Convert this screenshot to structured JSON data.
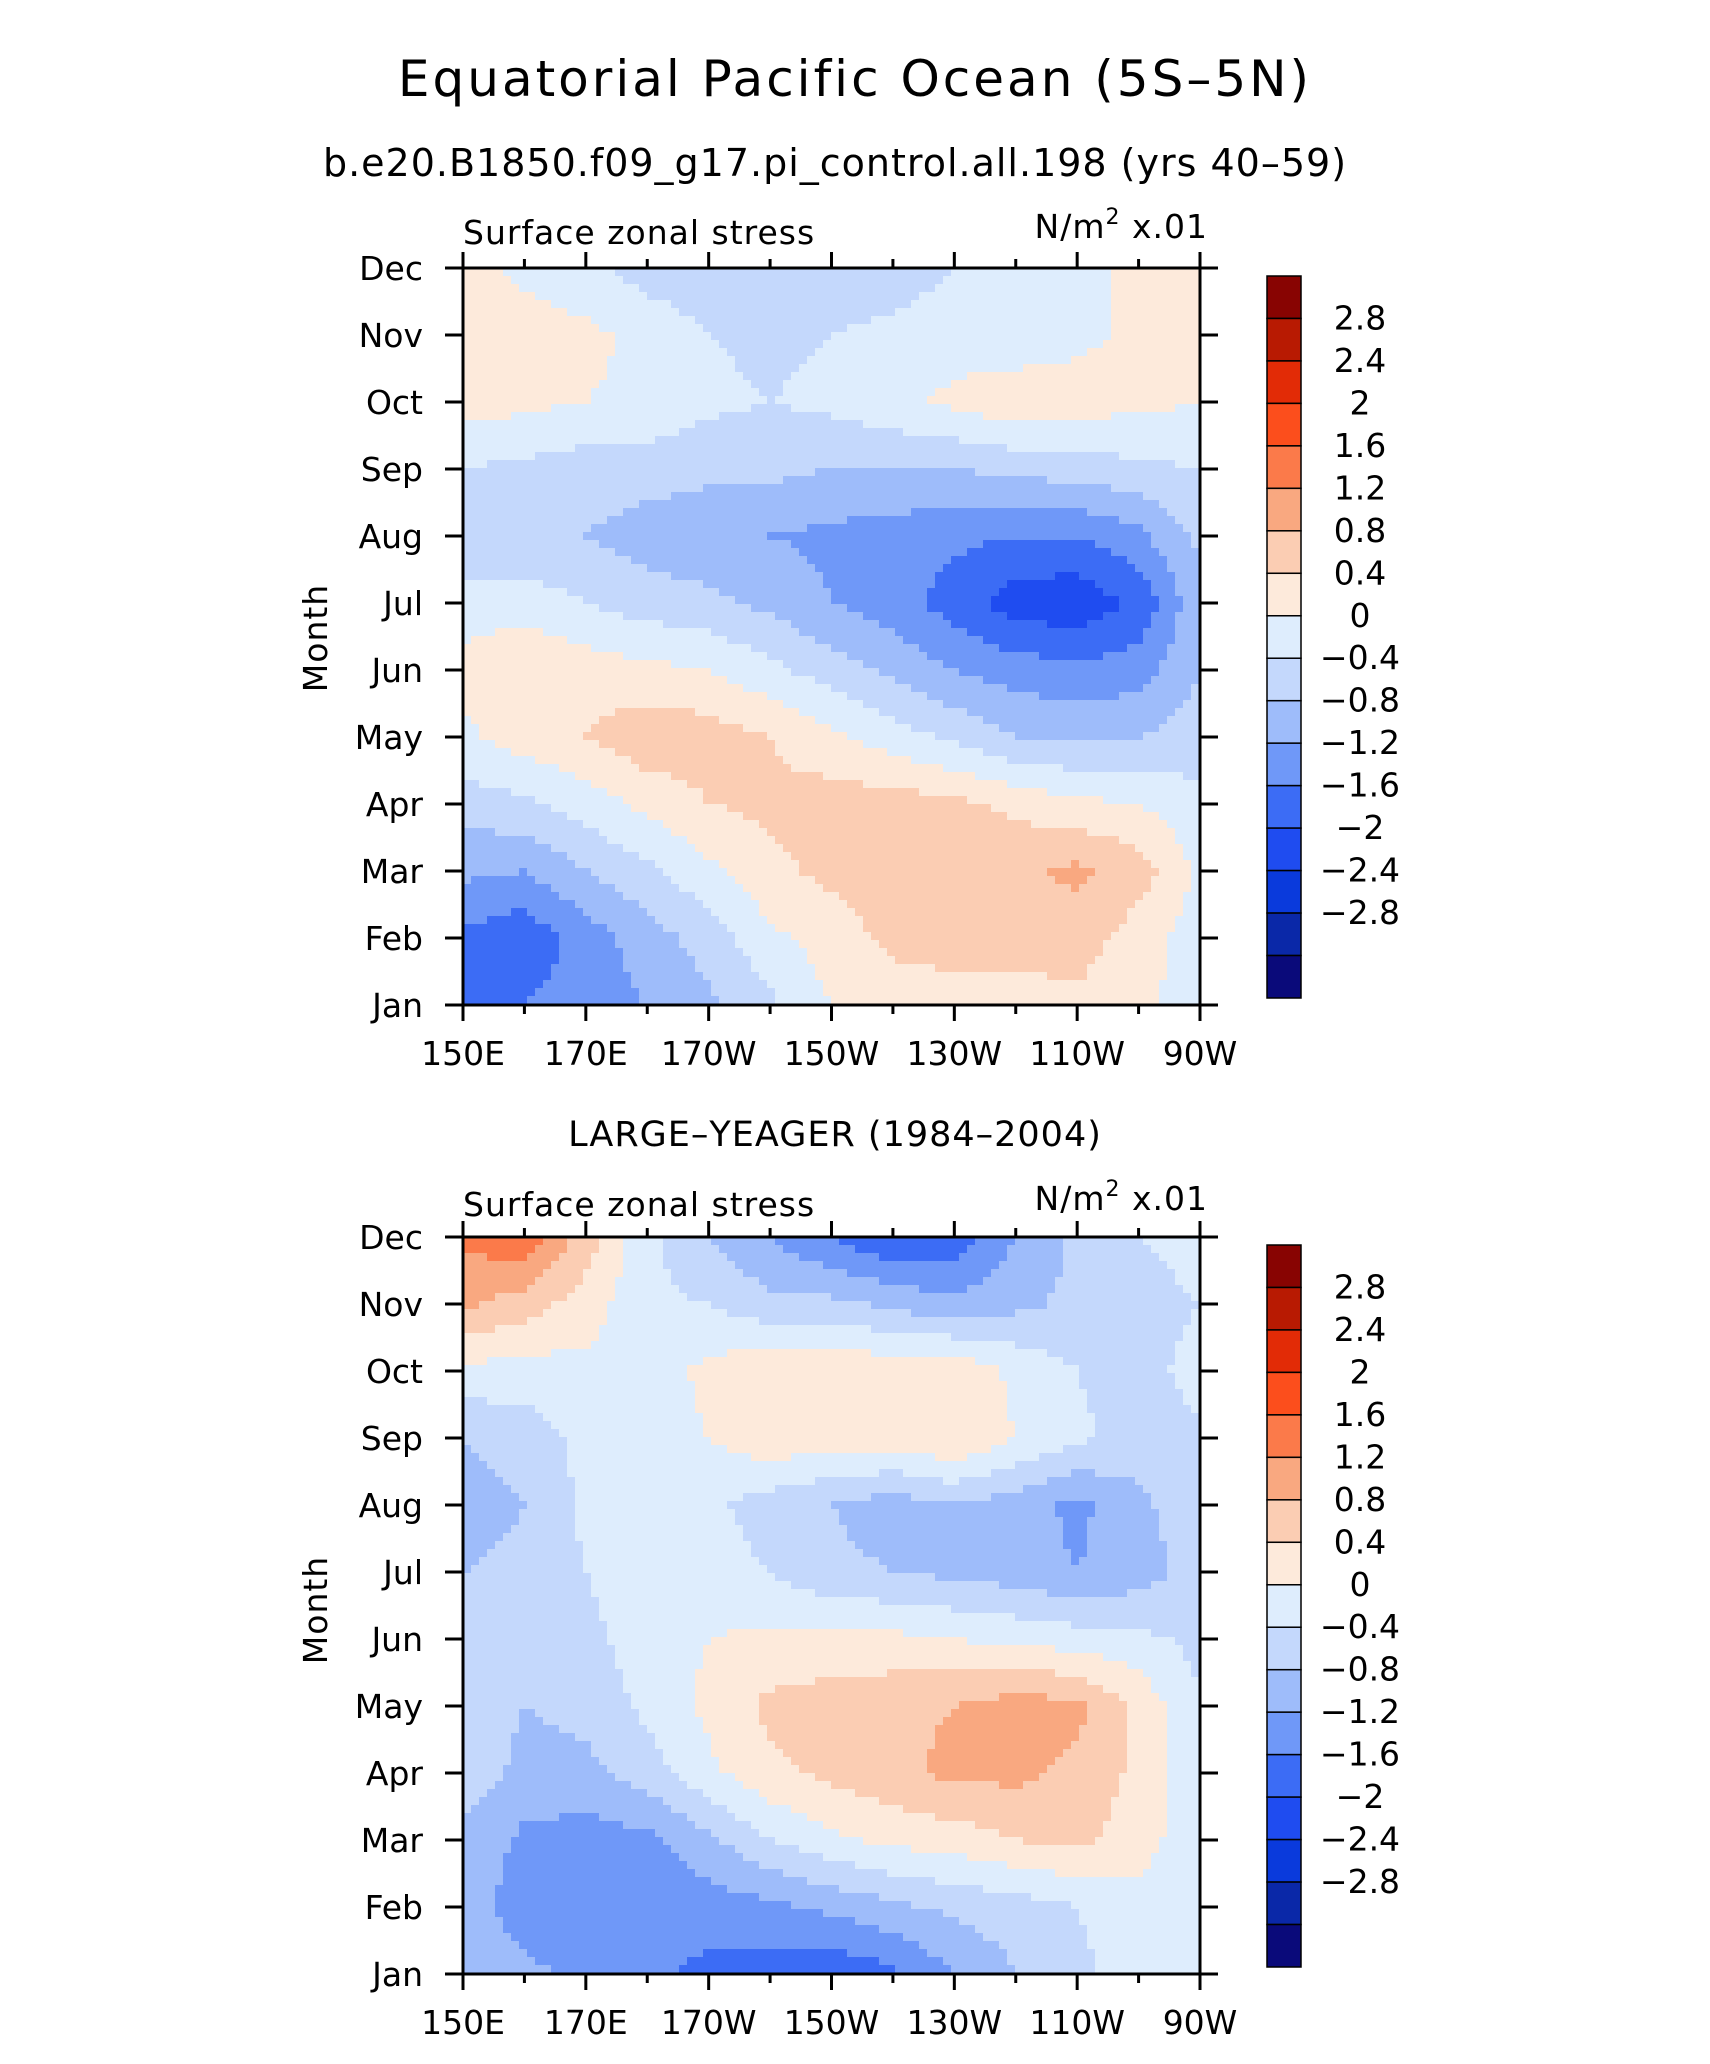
{
  "title": "Equatorial Pacific Ocean (5S–5N)",
  "colors": [
    "#0a0a7a",
    "#0a28a8",
    "#0a3adc",
    "#1f4cf0",
    "#3c6cf5",
    "#6f98f8",
    "#9ebcfa",
    "#c4d8fc",
    "#deedfd",
    "#fdeadb",
    "#fbcdb3",
    "#f9a880",
    "#fb7a4a",
    "#fc4e1c",
    "#e22b06",
    "#b81a02",
    "#880402"
  ],
  "chart_data": [
    {
      "type": "heatmap",
      "title": "b.e20.B1850.f09_g17.pi_control.all.198 (yrs 40–59)",
      "left_label": "Surface zonal stress",
      "right_label_prefix": "N/m",
      "right_label_sup": "2",
      "right_label_suffix": " x.01",
      "ylabel": "Month",
      "xlabel": "",
      "x_ticks": [
        "150E",
        "170E",
        "170W",
        "150W",
        "130W",
        "110W",
        "90W"
      ],
      "y_ticks": [
        "Jan",
        "Feb",
        "Mar",
        "Apr",
        "May",
        "Jun",
        "Jul",
        "Aug",
        "Sep",
        "Oct",
        "Nov",
        "Dec"
      ],
      "x": [
        150,
        160,
        170,
        180,
        190,
        200,
        210,
        220,
        230,
        240,
        250,
        260,
        270
      ],
      "levels": [
        -2.8,
        -2.4,
        -2,
        -1.6,
        -1.2,
        -0.8,
        -0.4,
        0,
        0.4,
        0.8,
        1.2,
        1.6,
        2,
        2.4,
        2.8
      ],
      "colorbar_labels": [
        "2.8",
        "2.4",
        "2",
        "1.6",
        "1.2",
        "0.8",
        "0.4",
        "0",
        "−0.4",
        "−0.8",
        "−1.2",
        "−1.6",
        "−2",
        "−2.4",
        "−2.8"
      ],
      "values": [
        [
          -1.3,
          -1.2,
          -1.0,
          -0.8,
          -0.5,
          -0.1,
          0.4,
          0.6,
          0.6,
          0.6,
          0.7,
          0.5,
          0.2
        ],
        [
          -1.3,
          -1.5,
          -1.0,
          -0.6,
          -0.2,
          0.3,
          0.6,
          0.9,
          1.0,
          1.0,
          1.0,
          0.6,
          0.2
        ],
        [
          -0.7,
          -0.8,
          -0.4,
          -0.1,
          0.3,
          0.7,
          0.9,
          1.0,
          1.1,
          1.1,
          1.3,
          1.0,
          0.3
        ],
        [
          -0.2,
          -0.1,
          0.2,
          0.5,
          0.8,
          0.9,
          1.0,
          1.0,
          0.9,
          0.7,
          0.5,
          0.4,
          0.1
        ],
        [
          0.3,
          0.6,
          0.8,
          1.1,
          1.0,
          0.8,
          0.5,
          0.2,
          -0.1,
          -0.4,
          -0.5,
          -0.4,
          -0.2
        ],
        [
          0.6,
          0.8,
          0.6,
          0.5,
          0.4,
          0.1,
          -0.2,
          -0.5,
          -0.8,
          -1.0,
          -1.1,
          -1.0,
          -0.4
        ],
        [
          0.1,
          0.2,
          0.0,
          -0.2,
          -0.3,
          -0.5,
          -0.8,
          -1.0,
          -1.4,
          -1.8,
          -1.9,
          -1.5,
          -0.5
        ],
        [
          -0.2,
          -0.3,
          -0.4,
          -0.6,
          -0.7,
          -0.8,
          -0.9,
          -1.0,
          -1.1,
          -1.2,
          -1.2,
          -0.9,
          -0.3
        ],
        [
          0.0,
          -0.1,
          -0.2,
          -0.2,
          -0.3,
          -0.3,
          -0.4,
          -0.4,
          -0.4,
          -0.3,
          -0.2,
          -0.1,
          0.0
        ],
        [
          0.6,
          0.5,
          0.4,
          0.3,
          0.1,
          0.0,
          0.1,
          0.3,
          0.5,
          0.7,
          0.6,
          0.5,
          0.4
        ],
        [
          0.5,
          0.6,
          0.5,
          0.3,
          0.0,
          -0.1,
          0.0,
          0.1,
          0.2,
          0.1,
          0.3,
          0.5,
          0.6
        ],
        [
          0.6,
          0.3,
          0.1,
          -0.2,
          -0.3,
          -0.4,
          -0.3,
          -0.2,
          0.0,
          0.1,
          0.3,
          0.5,
          0.6
        ]
      ]
    },
    {
      "type": "heatmap",
      "title": "LARGE–YEAGER (1984–2004)",
      "left_label": "Surface zonal stress",
      "right_label_prefix": "N/m",
      "right_label_sup": "2",
      "right_label_suffix": " x.01",
      "ylabel": "Month",
      "xlabel": "",
      "x_ticks": [
        "150E",
        "170E",
        "170W",
        "150W",
        "130W",
        "110W",
        "90W"
      ],
      "y_ticks": [
        "Jan",
        "Feb",
        "Mar",
        "Apr",
        "May",
        "Jun",
        "Jul",
        "Aug",
        "Sep",
        "Oct",
        "Nov",
        "Dec"
      ],
      "x": [
        150,
        160,
        170,
        180,
        190,
        200,
        210,
        220,
        230,
        240,
        250,
        260,
        270
      ],
      "levels": [
        -2.8,
        -2.4,
        -2,
        -1.6,
        -1.2,
        -0.8,
        -0.4,
        0,
        0.4,
        0.8,
        1.2,
        1.6,
        2,
        2.4,
        2.8
      ],
      "colorbar_labels": [
        "2.8",
        "2.4",
        "2",
        "1.6",
        "1.2",
        "0.8",
        "0.4",
        "0",
        "−0.4",
        "−0.8",
        "−1.2",
        "−1.6",
        "−2",
        "−2.4",
        "−2.8"
      ],
      "values": [
        [
          -0.5,
          -0.7,
          -0.9,
          -1.1,
          -1.3,
          -1.4,
          -1.5,
          -1.3,
          -0.8,
          -0.4,
          -0.1,
          0.2,
          0.3
        ],
        [
          -0.6,
          -1.0,
          -1.1,
          -1.2,
          -1.0,
          -0.9,
          -0.7,
          -0.5,
          -0.3,
          -0.2,
          0.0,
          0.2,
          0.2
        ],
        [
          -0.5,
          -0.9,
          -1.0,
          -0.9,
          -0.5,
          0.0,
          0.3,
          0.5,
          0.6,
          0.8,
          0.9,
          0.6,
          0.1
        ],
        [
          -0.2,
          -0.5,
          -0.5,
          -0.2,
          0.3,
          0.7,
          0.9,
          1.1,
          1.3,
          1.3,
          1.1,
          0.7,
          0.1
        ],
        [
          -0.1,
          -0.4,
          -0.3,
          0.1,
          0.5,
          0.9,
          1.0,
          1.1,
          1.2,
          1.4,
          1.3,
          0.7,
          0.0
        ],
        [
          -0.1,
          -0.3,
          -0.1,
          0.2,
          0.4,
          0.5,
          0.5,
          0.5,
          0.4,
          0.3,
          0.2,
          0.1,
          -0.1
        ],
        [
          -0.4,
          -0.3,
          0.0,
          0.2,
          0.2,
          0.0,
          -0.3,
          -0.4,
          -0.5,
          -0.6,
          -0.8,
          -0.6,
          -0.2
        ],
        [
          -0.6,
          -0.4,
          0.1,
          0.2,
          0.1,
          -0.2,
          -0.4,
          -0.6,
          -0.4,
          -0.6,
          -0.9,
          -0.5,
          -0.1
        ],
        [
          -0.4,
          -0.2,
          0.1,
          0.2,
          0.4,
          0.7,
          0.6,
          0.6,
          0.8,
          0.4,
          0.1,
          -0.2,
          -0.1
        ],
        [
          0.3,
          0.2,
          0.3,
          0.2,
          0.5,
          0.8,
          0.7,
          0.7,
          0.7,
          0.3,
          0.0,
          -0.2,
          0.2
        ],
        [
          1.3,
          1.0,
          0.6,
          0.1,
          0.0,
          -0.3,
          -0.3,
          -0.5,
          -0.7,
          -0.5,
          -0.3,
          -0.2,
          0.0
        ],
        [
          1.7,
          1.9,
          1.0,
          0.1,
          -0.4,
          -0.8,
          -1.2,
          -1.6,
          -1.5,
          -0.8,
          -0.3,
          0.0,
          0.2
        ]
      ]
    }
  ]
}
